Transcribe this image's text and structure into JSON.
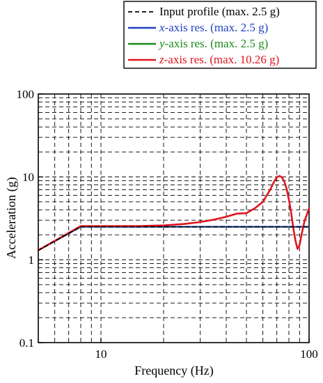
{
  "chart_data": {
    "type": "line",
    "xscale": "log",
    "yscale": "log",
    "xlim": [
      5,
      100
    ],
    "ylim": [
      0.1,
      100
    ],
    "xlabel": "Frequency (Hz)",
    "ylabel": "Acceleration (g)",
    "x_ticks": [
      10,
      100
    ],
    "x_tick_labels": [
      "10",
      "100"
    ],
    "y_ticks": [
      0.1,
      1,
      10,
      100
    ],
    "y_tick_labels": [
      "0.1",
      "1",
      "10",
      "100"
    ],
    "grid": true,
    "legend_position": "top-right",
    "series": [
      {
        "name": "Input profile (max. 2.5 g)",
        "legend_parts": [
          "",
          "Input profile (max. 2.5 g)"
        ],
        "color": "#000000",
        "dash": "dashed",
        "x": [
          5,
          8,
          100
        ],
        "y": [
          1.3,
          2.5,
          2.5
        ]
      },
      {
        "name": "x-axis res. (max. 2.5 g)",
        "legend_parts": [
          "x",
          "-axis res. (max. 2.5 g)"
        ],
        "color": "#1f3fbf",
        "dash": "solid",
        "x": [
          5,
          8,
          100
        ],
        "y": [
          1.3,
          2.5,
          2.5
        ]
      },
      {
        "name": "y-axis res. (max. 2.5 g)",
        "legend_parts": [
          "y",
          "-axis res. (max. 2.5 g)"
        ],
        "color": "#1a8a1a",
        "dash": "solid",
        "x": [
          5,
          8,
          100
        ],
        "y": [
          1.3,
          2.5,
          2.5
        ]
      },
      {
        "name": "z-axis res. (max. 10.26 g)",
        "legend_parts": [
          "z",
          "-axis res. (max. 10.26 g)"
        ],
        "color": "#e0141e",
        "dash": "solid",
        "x": [
          5,
          8,
          15,
          20,
          25,
          30,
          35,
          40,
          45,
          50,
          55,
          60,
          65,
          68,
          70,
          72,
          74,
          76,
          78,
          80,
          82,
          84,
          86,
          88,
          90,
          92,
          95,
          100
        ],
        "y": [
          1.3,
          2.55,
          2.55,
          2.6,
          2.7,
          2.85,
          3.05,
          3.3,
          3.6,
          3.65,
          4.2,
          5.0,
          7.0,
          8.8,
          9.9,
          10.26,
          9.9,
          8.8,
          7.2,
          5.3,
          3.7,
          2.4,
          1.7,
          1.35,
          1.5,
          2.0,
          2.9,
          4.2
        ]
      }
    ]
  }
}
